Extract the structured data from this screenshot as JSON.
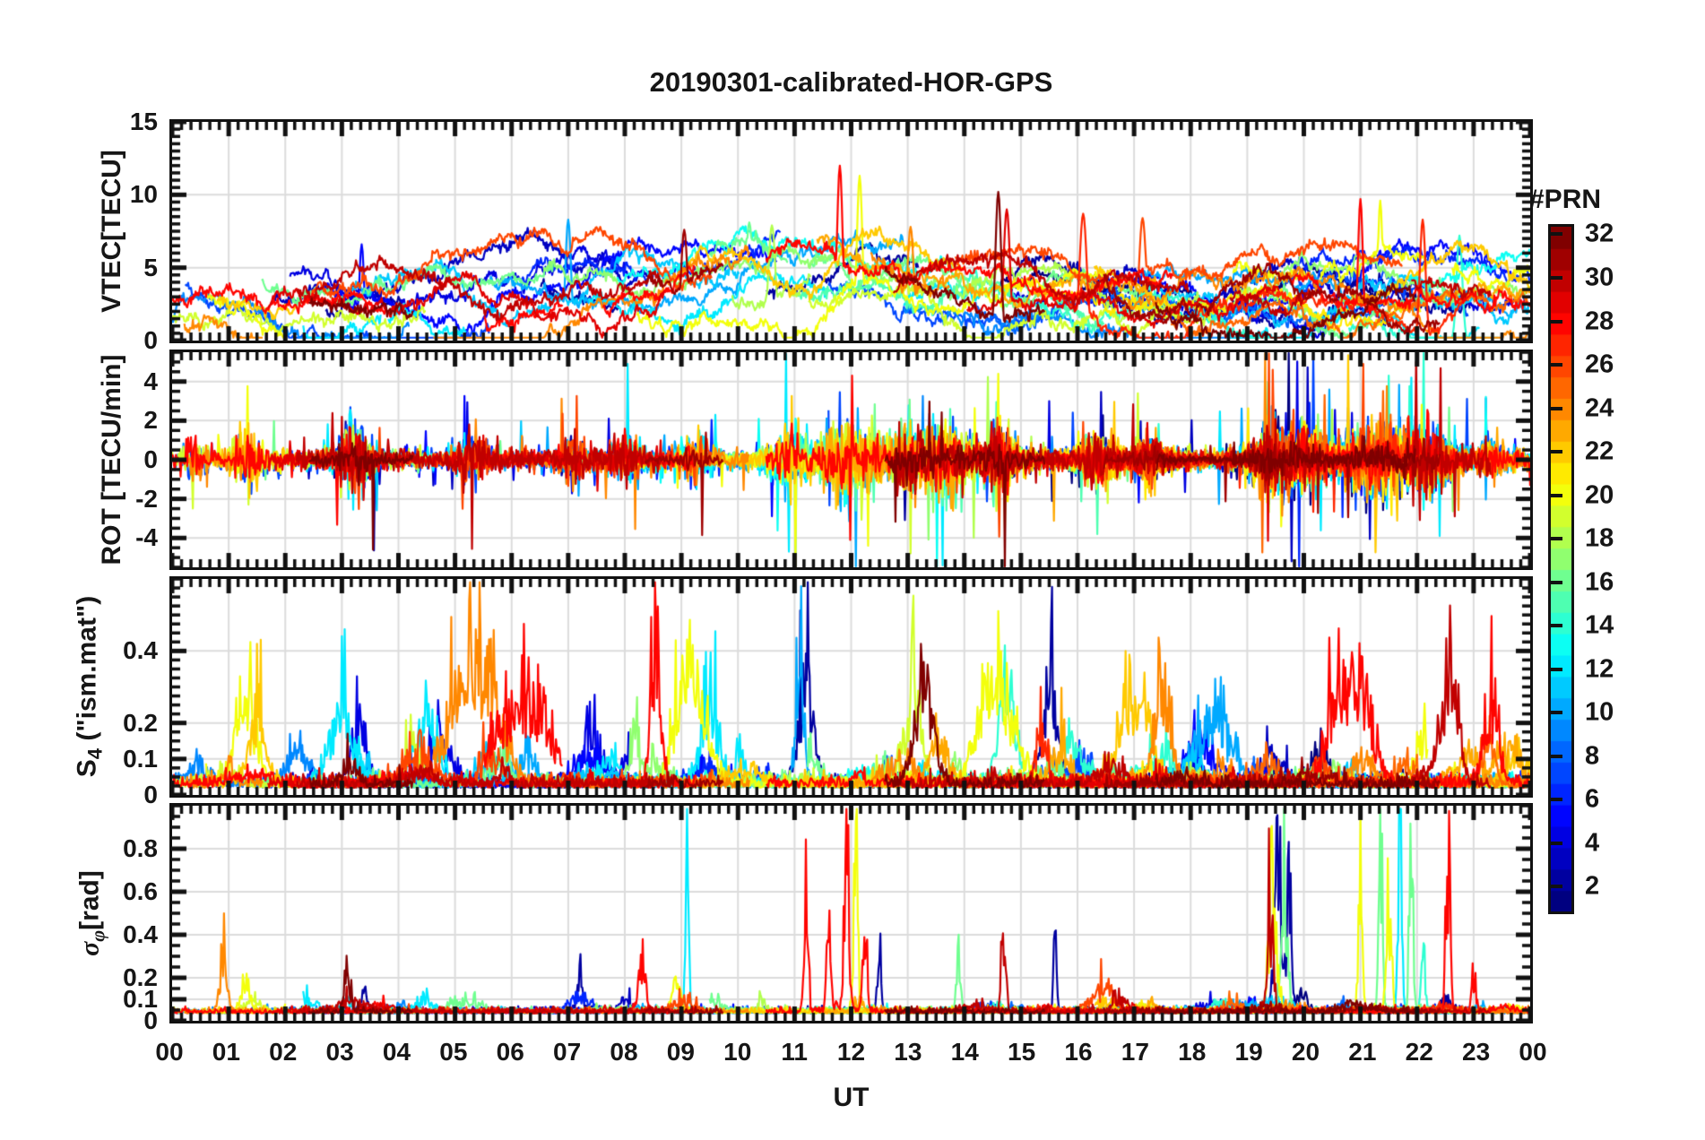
{
  "title": "20190301-calibrated-HOR-GPS",
  "x_axis": {
    "label": "UT",
    "tick_labels": [
      "00",
      "01",
      "02",
      "03",
      "04",
      "05",
      "06",
      "07",
      "08",
      "09",
      "10",
      "11",
      "12",
      "13",
      "14",
      "15",
      "16",
      "17",
      "18",
      "19",
      "20",
      "21",
      "22",
      "23",
      "00"
    ],
    "range_hours": [
      0,
      24
    ],
    "minor_tick_minutes": 10
  },
  "colorbar": {
    "label": "#PRN",
    "colormap": "jet",
    "levels": 32,
    "cmin": 1,
    "cmax": 32,
    "ticks": [
      2,
      4,
      6,
      8,
      10,
      12,
      14,
      16,
      18,
      20,
      22,
      24,
      26,
      28,
      30,
      32
    ],
    "top_color": "#800000",
    "bottom_color": "#000080"
  },
  "colors": {
    "background": "#ffffff",
    "frame": "#111111",
    "grid": "#dcdcdc",
    "text": "#161616"
  },
  "chart_data": [
    {
      "type": "line",
      "name": "vtec",
      "ylabel": "VTEC[TECU]",
      "ylim": [
        0,
        15
      ],
      "yticks": [
        0,
        5,
        10,
        15
      ],
      "ytick_labels": [
        "0",
        "5",
        "10",
        "15"
      ],
      "yminor": 0.5,
      "grid": true,
      "series_note": "~32 GPS satellite VTEC traces colored by PRN (jet colormap); background level 1.5-6 TECU with midday enhancement to ~6-7 TECU",
      "baseline": {
        "base_min": 1.3,
        "base_spread": 2.8,
        "diurnal_amp": 2.1,
        "diurnal_center": 11.5,
        "diurnal_width": 4.5,
        "noise": 0.13
      },
      "events": [
        {
          "t": 3.35,
          "prn": 5,
          "v": 6.6,
          "w": 0.06
        },
        {
          "t": 7.0,
          "prn": 10,
          "v": 8.3,
          "w": 0.07
        },
        {
          "t": 9.05,
          "prn": 31,
          "v": 7.6,
          "w": 0.08
        },
        {
          "t": 10.2,
          "prn": 16,
          "v": 8.1,
          "w": 0.09
        },
        {
          "t": 10.6,
          "prn": 18,
          "v": 7.9,
          "w": 0.09
        },
        {
          "t": 11.8,
          "prn": 28,
          "v": 12.0,
          "w": 0.07
        },
        {
          "t": 12.15,
          "prn": 20,
          "v": 11.3,
          "w": 0.07
        },
        {
          "t": 13.05,
          "prn": 24,
          "v": 7.8,
          "w": 0.08
        },
        {
          "t": 14.6,
          "prn": 32,
          "v": 10.2,
          "w": 0.07
        },
        {
          "t": 14.75,
          "prn": 29,
          "v": 9.0,
          "w": 0.08
        },
        {
          "t": 16.1,
          "prn": 27,
          "v": 8.7,
          "w": 0.09
        },
        {
          "t": 17.15,
          "prn": 26,
          "v": 8.4,
          "w": 0.09
        },
        {
          "t": 21.0,
          "prn": 28,
          "v": 9.7,
          "w": 0.06
        },
        {
          "t": 21.35,
          "prn": 20,
          "v": 9.6,
          "w": 0.06
        },
        {
          "t": 22.1,
          "prn": 27,
          "v": 8.3,
          "w": 0.07
        },
        {
          "t": 22.75,
          "prn": 14,
          "v": 7.2,
          "w": 0.07
        }
      ]
    },
    {
      "type": "line",
      "name": "rot",
      "ylabel": "ROT [TECU/min]",
      "ylim": [
        -5.5,
        5.5
      ],
      "yticks": [
        -4,
        -2,
        0,
        2,
        4
      ],
      "ytick_labels": [
        "-4",
        "-2",
        "0",
        "2",
        "4"
      ],
      "yminor": 0.5,
      "grid": true,
      "series_note": "Rate of TEC, zero-mean noise ±1 with storm-time bursts to ±5.5 TECU/min",
      "baseline": {
        "noise": 0.2,
        "spike_prob": 0.015,
        "spike_scale": 0.9
      },
      "bursts": [
        {
          "t": 0.4,
          "a": 1.2,
          "w": 0.2
        },
        {
          "t": 1.35,
          "a": 2.5,
          "w": 0.25
        },
        {
          "t": 3.2,
          "a": 3.2,
          "w": 0.3
        },
        {
          "t": 5.3,
          "a": 1.8,
          "w": 0.3
        },
        {
          "t": 7.1,
          "a": 1.8,
          "w": 0.2
        },
        {
          "t": 8.0,
          "a": 1.5,
          "w": 0.3
        },
        {
          "t": 9.2,
          "a": 1.6,
          "w": 0.25
        },
        {
          "t": 10.9,
          "a": 2.8,
          "w": 0.3
        },
        {
          "t": 12.0,
          "a": 3.2,
          "w": 0.5
        },
        {
          "t": 13.0,
          "a": 2.2,
          "w": 0.3
        },
        {
          "t": 13.7,
          "a": 2.8,
          "w": 0.4
        },
        {
          "t": 14.6,
          "a": 2.6,
          "w": 0.3
        },
        {
          "t": 16.4,
          "a": 1.6,
          "w": 0.3
        },
        {
          "t": 17.3,
          "a": 1.5,
          "w": 0.25
        },
        {
          "t": 19.5,
          "a": 3.0,
          "w": 0.4
        },
        {
          "t": 20.1,
          "a": 2.2,
          "w": 0.3
        },
        {
          "t": 21.3,
          "a": 3.0,
          "w": 0.6
        },
        {
          "t": 22.2,
          "a": 2.6,
          "w": 0.4
        },
        {
          "t": 23.3,
          "a": 1.4,
          "w": 0.2
        }
      ],
      "spikes": [
        {
          "t": 3.55,
          "prn": 32,
          "v": -4.6
        },
        {
          "t": 8.05,
          "prn": 12,
          "v": 4.9
        },
        {
          "t": 10.85,
          "prn": 12,
          "v": 5.4
        },
        {
          "t": 10.9,
          "prn": 12,
          "v": -4.7
        },
        {
          "t": 11.98,
          "prn": 28,
          "v": -4.1
        },
        {
          "t": 12.02,
          "prn": 28,
          "v": 4.3
        },
        {
          "t": 12.3,
          "prn": 20,
          "v": -4.4
        },
        {
          "t": 13.62,
          "prn": 12,
          "v": -5.4
        },
        {
          "t": 14.6,
          "prn": 20,
          "v": 4.4
        },
        {
          "t": 14.72,
          "prn": 32,
          "v": -5.5
        },
        {
          "t": 15.5,
          "prn": 4,
          "v": 3.0
        },
        {
          "t": 19.45,
          "prn": 26,
          "v": 4.6
        },
        {
          "t": 21.05,
          "prn": 26,
          "v": 4.9
        },
        {
          "t": 21.5,
          "prn": 14,
          "v": 4.3
        },
        {
          "t": 21.9,
          "prn": 12,
          "v": 4.2
        },
        {
          "t": 22.4,
          "prn": 12,
          "v": -3.9
        }
      ]
    },
    {
      "type": "line",
      "name": "s4",
      "ylabel_parts": {
        "main": "S",
        "sub": "4",
        "rest": " (\"ism.mat\")"
      },
      "ylim": [
        0,
        0.6
      ],
      "yticks": [
        0,
        0.1,
        0.2,
        0.4
      ],
      "ytick_labels": [
        "0",
        "0.1",
        "0.2",
        "0.4"
      ],
      "yminor": 0.025,
      "grid": true,
      "series_note": "Amplitude scintillation index S4; floor ~0.02-0.05 with bumps 0.1-0.44",
      "baseline": {
        "floor": 0.02,
        "noise": 0.016,
        "random_bumps": 7,
        "bump_amp_max": 0.13
      },
      "events": [
        {
          "t": 1.3,
          "prn": 20,
          "v": 0.27,
          "w": 0.25
        },
        {
          "t": 1.5,
          "prn": 22,
          "v": 0.22,
          "w": 0.2
        },
        {
          "t": 3.0,
          "prn": 12,
          "v": 0.22,
          "w": 0.3
        },
        {
          "t": 3.3,
          "prn": 4,
          "v": 0.16,
          "w": 0.2
        },
        {
          "t": 4.5,
          "prn": 12,
          "v": 0.2,
          "w": 0.3
        },
        {
          "t": 4.7,
          "prn": 4,
          "v": 0.18,
          "w": 0.2
        },
        {
          "t": 5.3,
          "prn": 24,
          "v": 0.33,
          "w": 0.5
        },
        {
          "t": 6.2,
          "prn": 28,
          "v": 0.28,
          "w": 0.6
        },
        {
          "t": 7.4,
          "prn": 4,
          "v": 0.17,
          "w": 0.2
        },
        {
          "t": 8.55,
          "prn": 28,
          "v": 0.44,
          "w": 0.12
        },
        {
          "t": 9.0,
          "prn": 20,
          "v": 0.21,
          "w": 0.25
        },
        {
          "t": 9.3,
          "prn": 20,
          "v": 0.23,
          "w": 0.3
        },
        {
          "t": 9.5,
          "prn": 12,
          "v": 0.22,
          "w": 0.2
        },
        {
          "t": 11.1,
          "prn": 10,
          "v": 0.36,
          "w": 0.1
        },
        {
          "t": 11.2,
          "prn": 2,
          "v": 0.3,
          "w": 0.15
        },
        {
          "t": 13.1,
          "prn": 19,
          "v": 0.31,
          "w": 0.2
        },
        {
          "t": 13.3,
          "prn": 32,
          "v": 0.24,
          "w": 0.2
        },
        {
          "t": 14.6,
          "prn": 20,
          "v": 0.3,
          "w": 0.4
        },
        {
          "t": 14.75,
          "prn": 14,
          "v": 0.33,
          "w": 0.2
        },
        {
          "t": 15.5,
          "prn": 2,
          "v": 0.28,
          "w": 0.2
        },
        {
          "t": 17.0,
          "prn": 22,
          "v": 0.26,
          "w": 0.4
        },
        {
          "t": 17.5,
          "prn": 24,
          "v": 0.34,
          "w": 0.2
        },
        {
          "t": 18.4,
          "prn": 10,
          "v": 0.22,
          "w": 0.4
        },
        {
          "t": 20.6,
          "prn": 28,
          "v": 0.22,
          "w": 0.3
        },
        {
          "t": 21.0,
          "prn": 28,
          "v": 0.26,
          "w": 0.3
        },
        {
          "t": 22.6,
          "prn": 30,
          "v": 0.27,
          "w": 0.2
        },
        {
          "t": 23.3,
          "prn": 28,
          "v": 0.2,
          "w": 0.2
        }
      ]
    },
    {
      "type": "line",
      "name": "sigma_phi",
      "ylabel_parts": {
        "main": "σ",
        "sub": "φ",
        "rest": "[rad]"
      },
      "ylim": [
        0,
        1.0
      ],
      "yticks": [
        0,
        0.1,
        0.2,
        0.4,
        0.6,
        0.8
      ],
      "ytick_labels": [
        "0",
        "0.1",
        "0.2",
        "0.4",
        "0.6",
        "0.8"
      ],
      "yminor": 0.05,
      "grid": true,
      "series_note": "Phase scintillation sigma-phi; floor ~0.05 rad with isolated spikes to ~0.95 rad",
      "baseline": {
        "floor": 0.035,
        "noise": 0.012,
        "random_bumps": 4,
        "bump_amp_max": 0.09
      },
      "events": [
        {
          "t": 0.9,
          "prn": 24,
          "v": 0.22,
          "w": 0.1
        },
        {
          "t": 1.3,
          "prn": 20,
          "v": 0.18,
          "w": 0.1
        },
        {
          "t": 3.1,
          "prn": 32,
          "v": 0.18,
          "w": 0.08
        },
        {
          "t": 3.4,
          "prn": 2,
          "v": 0.16,
          "w": 0.06
        },
        {
          "t": 7.2,
          "prn": 2,
          "v": 0.2,
          "w": 0.05
        },
        {
          "t": 8.3,
          "prn": 28,
          "v": 0.18,
          "w": 0.1
        },
        {
          "t": 8.9,
          "prn": 20,
          "v": 0.16,
          "w": 0.1
        },
        {
          "t": 9.1,
          "prn": 12,
          "v": 0.95,
          "w": 0.035
        },
        {
          "t": 11.2,
          "prn": 28,
          "v": 0.47,
          "w": 0.05
        },
        {
          "t": 11.6,
          "prn": 28,
          "v": 0.42,
          "w": 0.05
        },
        {
          "t": 11.92,
          "prn": 28,
          "v": 0.97,
          "w": 0.05
        },
        {
          "t": 12.08,
          "prn": 20,
          "v": 0.93,
          "w": 0.05
        },
        {
          "t": 12.25,
          "prn": 28,
          "v": 0.45,
          "w": 0.05
        },
        {
          "t": 12.5,
          "prn": 2,
          "v": 0.22,
          "w": 0.05
        },
        {
          "t": 13.9,
          "prn": 16,
          "v": 0.28,
          "w": 0.05
        },
        {
          "t": 14.7,
          "prn": 30,
          "v": 0.43,
          "w": 0.05
        },
        {
          "t": 15.6,
          "prn": 2,
          "v": 0.47,
          "w": 0.035
        },
        {
          "t": 19.4,
          "prn": 30,
          "v": 0.42,
          "w": 0.08
        },
        {
          "t": 19.45,
          "prn": 20,
          "v": 0.62,
          "w": 0.1
        },
        {
          "t": 19.55,
          "prn": 2,
          "v": 0.65,
          "w": 0.1
        },
        {
          "t": 19.65,
          "prn": 16,
          "v": 0.68,
          "w": 0.08
        },
        {
          "t": 19.75,
          "prn": 2,
          "v": 0.6,
          "w": 0.06
        },
        {
          "t": 21.0,
          "prn": 20,
          "v": 0.97,
          "w": 0.045
        },
        {
          "t": 21.35,
          "prn": 16,
          "v": 0.97,
          "w": 0.045
        },
        {
          "t": 21.5,
          "prn": 20,
          "v": 0.55,
          "w": 0.06
        },
        {
          "t": 21.7,
          "prn": 12,
          "v": 0.97,
          "w": 0.045
        },
        {
          "t": 21.9,
          "prn": 16,
          "v": 0.97,
          "w": 0.04
        },
        {
          "t": 22.1,
          "prn": 14,
          "v": 0.42,
          "w": 0.05
        },
        {
          "t": 22.55,
          "prn": 28,
          "v": 0.75,
          "w": 0.05
        },
        {
          "t": 23.0,
          "prn": 28,
          "v": 0.2,
          "w": 0.05
        }
      ]
    }
  ]
}
